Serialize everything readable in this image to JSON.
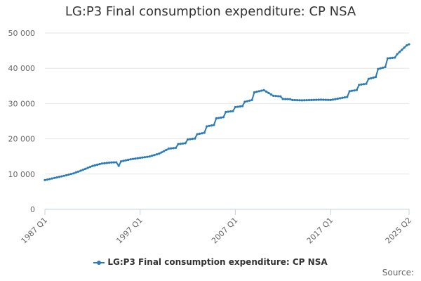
{
  "colors": {
    "series": "#2b7bb9",
    "grid": "#e6e6e6",
    "axis": "#c0d0e0"
  },
  "source_label": "Source:",
  "chart_data": {
    "type": "line",
    "title": "LG:P3 Final consumption expenditure: CP NSA",
    "xlabel": "",
    "ylabel": "",
    "ylim": [
      0,
      50000
    ],
    "yticks": [
      0,
      10000,
      20000,
      30000,
      40000,
      50000
    ],
    "ytick_labels": [
      "0",
      "10 000",
      "20 000",
      "30 000",
      "40 000",
      "50 000"
    ],
    "xlim": [
      1987.0,
      2025.25
    ],
    "xticks": [
      1987.0,
      1997.0,
      2007.0,
      2017.0,
      2025.25
    ],
    "xtick_labels": [
      "1987 Q1",
      "1997 Q1",
      "2007 Q1",
      "2017 Q1",
      "2025 Q2"
    ],
    "grid": true,
    "legend": "bottom-center",
    "series": [
      {
        "name": "LG:P3 Final consumption expenditure: CP NSA",
        "anchor_years": [
          1987,
          1988,
          1989,
          1990,
          1991,
          1992,
          1993,
          1994,
          1995,
          1996,
          1997,
          1998,
          1999,
          2000,
          2001,
          2002,
          2003,
          2004,
          2005,
          2006,
          2007,
          2008,
          2009,
          2010,
          2011,
          2012,
          2013,
          2014,
          2015,
          2016,
          2017,
          2018,
          2019,
          2020,
          2021,
          2022,
          2023,
          2024,
          2025
        ],
        "anchor_values": [
          8300,
          8900,
          9500,
          10200,
          11200,
          12300,
          13000,
          13300,
          13600,
          14200,
          14600,
          15000,
          15800,
          17200,
          18500,
          19800,
          21300,
          23500,
          25800,
          27600,
          29000,
          30500,
          33200,
          33800,
          32200,
          31300,
          31000,
          30900,
          31000,
          31100,
          31000,
          31500,
          33500,
          35300,
          37000,
          39800,
          42800,
          44000,
          46500
        ],
        "step_years": [
          1988.25,
          1992.25,
          1994.0,
          1994.75,
          1996.25,
          1998.25,
          2000.0,
          2001.0,
          2002.0,
          2003.0,
          2004.0,
          2005.0,
          2006.0,
          2007.0,
          2008.0,
          2011.0,
          2012.0,
          2018.0,
          2019.0,
          2020.0,
          2021.0,
          2022.0,
          2023.0
        ],
        "dip_years": [
          1994.75
        ],
        "dip_amount": -1000,
        "final_value": 46800,
        "start_year": 1987.0,
        "end_year": 2025.25,
        "step": 0.25
      }
    ]
  }
}
